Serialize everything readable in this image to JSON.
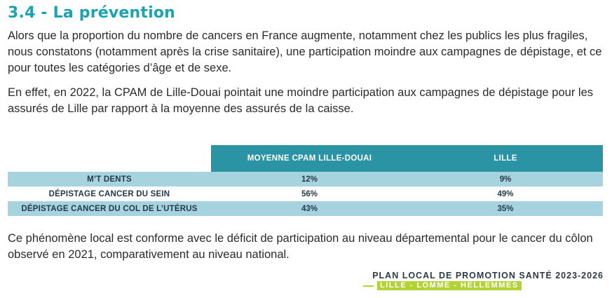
{
  "heading": "3.4 - La prévention",
  "paragraphs": {
    "p1": "Alors que la proportion du nombre de cancers en France augmente, notamment chez les publics les plus fragiles, nous constatons (notamment après la crise sanitaire), une participation moindre aux campagnes de dépistage, et ce pour toutes les catégories d’âge et de sexe.",
    "p2": "En effet, en 2022, la CPAM de Lille-Douai pointait une moindre participation aux campagnes de dépistage pour les assurés de Lille par rapport à la moyenne des assurés de la caisse.",
    "p3": "Ce phénomène local est conforme avec le déficit de participation au niveau départemental pour le cancer du côlon observé en 2021, comparativement au niveau national."
  },
  "table": {
    "headers": [
      "MOYENNE CPAM LILLE-DOUAI",
      "LILLE"
    ],
    "rows": [
      {
        "label": "M’T DENTS",
        "cpam": "12%",
        "lille": "9%"
      },
      {
        "label": "DÉPISTAGE CANCER DU SEIN",
        "cpam": "56%",
        "lille": "49%"
      },
      {
        "label": "DÉPISTAGE CANCER DU COL DE L’UTÉRUS",
        "cpam": "43%",
        "lille": "35%"
      }
    ]
  },
  "footer": {
    "title": "PLAN LOCAL DE PROMOTION SANTÉ 2023-2026",
    "subtitle": "LILLE - LOMME - HELLEMMES"
  },
  "colors": {
    "heading": "#1aa3b3",
    "table_header": "#2a93a4",
    "row_shade": "#a6d3dd",
    "footer_accent": "#b3d235"
  }
}
